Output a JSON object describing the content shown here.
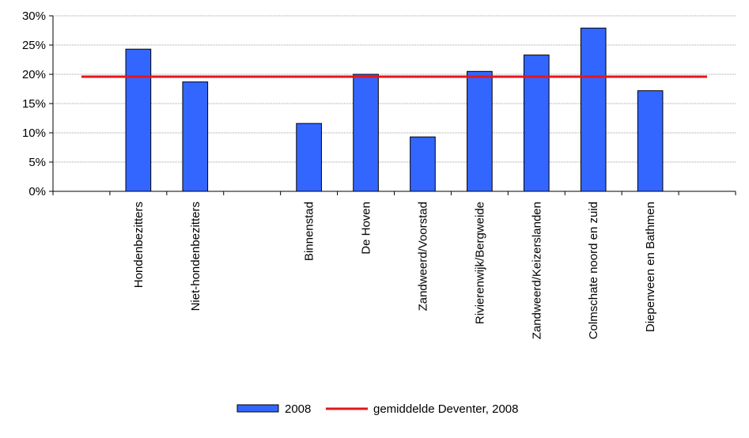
{
  "chart_data": {
    "type": "bar",
    "categories": [
      "",
      "Hondenbezitters",
      "Niet-hondenbezitters",
      "",
      "Binnenstad",
      "De Hoven",
      "Zandweerd/Voorstad",
      "Rivierenwijk/Bergweide",
      "Zandweerd/Keizerslanden",
      "Colmschate noord en zuid",
      "Diepenveen en Bathmen",
      ""
    ],
    "series": [
      {
        "name": "2008",
        "values": [
          null,
          24.3,
          18.7,
          null,
          11.6,
          20.0,
          9.3,
          20.5,
          23.3,
          27.9,
          17.2,
          null
        ],
        "color": "#3366ff"
      }
    ],
    "reference_line": {
      "name": "gemiddelde Deventer, 2008",
      "value": 19.6,
      "color": "#e8141c"
    },
    "ylim": [
      0,
      30
    ],
    "yticks": [
      0,
      5,
      10,
      15,
      20,
      25,
      30
    ],
    "ytick_labels": [
      "0%",
      "5%",
      "10%",
      "15%",
      "20%",
      "25%",
      "30%"
    ],
    "grid": true,
    "legend_position": "bottom",
    "title": "",
    "xlabel": "",
    "ylabel": ""
  }
}
